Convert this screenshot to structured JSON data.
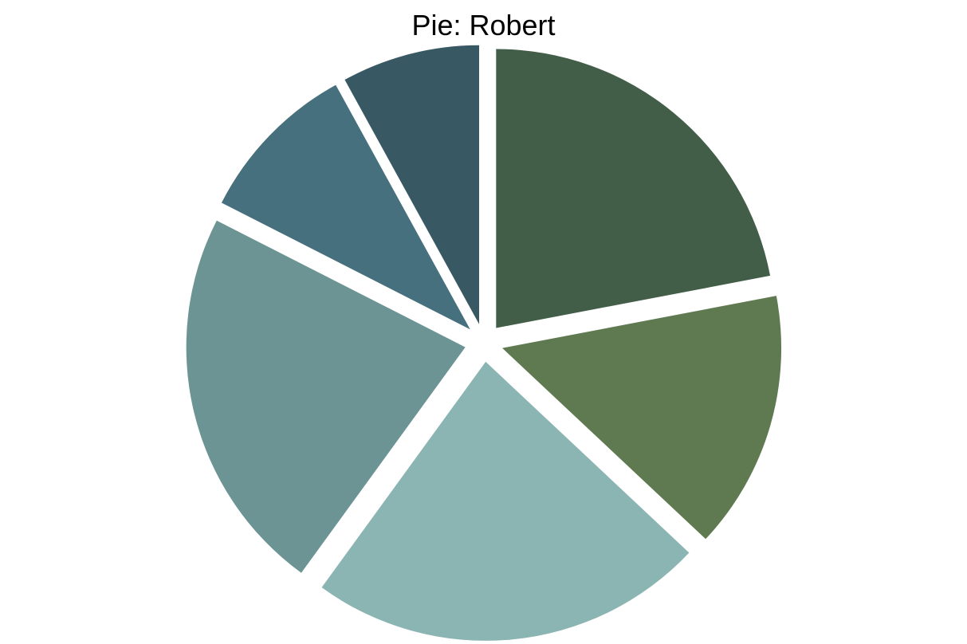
{
  "chart_data": {
    "type": "pie",
    "title": "Pie: Robert",
    "start_angle_deg": 90,
    "direction": "clockwise",
    "exploded": true,
    "slices": [
      {
        "value": 22.0,
        "color": "#425e49"
      },
      {
        "value": 15.0,
        "color": "#5f7a51"
      },
      {
        "value": 23.0,
        "color": "#8bb5b2"
      },
      {
        "value": 22.5,
        "color": "#6c9494"
      },
      {
        "value": 9.5,
        "color": "#46707d"
      },
      {
        "value": 8.0,
        "color": "#385964"
      }
    ]
  }
}
